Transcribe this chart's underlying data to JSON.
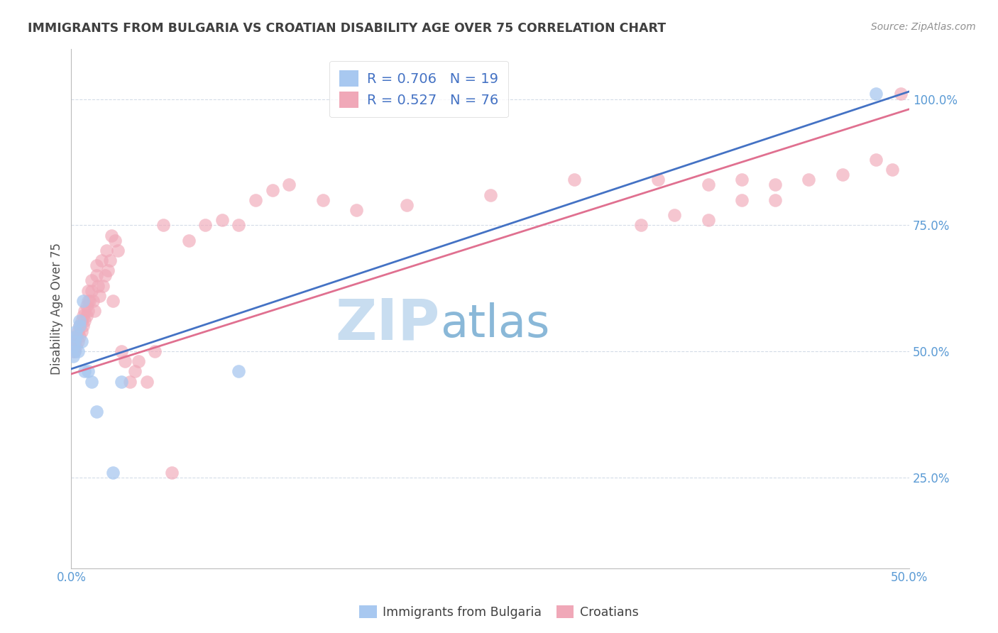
{
  "title": "IMMIGRANTS FROM BULGARIA VS CROATIAN DISABILITY AGE OVER 75 CORRELATION CHART",
  "source": "Source: ZipAtlas.com",
  "ylabel": "Disability Age Over 75",
  "xlim": [
    0.0,
    0.5
  ],
  "ylim": [
    0.07,
    1.1
  ],
  "xticks": [
    0.0,
    0.1,
    0.2,
    0.3,
    0.4,
    0.5
  ],
  "xticklabels": [
    "0.0%",
    "",
    "",
    "",
    "",
    "50.0%"
  ],
  "yticks": [
    0.25,
    0.5,
    0.75,
    1.0
  ],
  "yticklabels": [
    "25.0%",
    "50.0%",
    "75.0%",
    "100.0%"
  ],
  "legend_r_bulgaria": "0.706",
  "legend_n_bulgaria": "19",
  "legend_r_croatian": "0.527",
  "legend_n_croatian": "76",
  "color_bulgaria": "#a8c8f0",
  "color_croatian": "#f0a8b8",
  "color_line_bulgaria": "#4472c4",
  "color_line_croatian": "#e07090",
  "color_axis_tick": "#5b9bd5",
  "color_title": "#404040",
  "color_source": "#909090",
  "watermark_zip": "ZIP",
  "watermark_atlas": "atlas",
  "watermark_color_zip": "#c8ddf0",
  "watermark_color_atlas": "#8ab8d8",
  "background_color": "#ffffff",
  "grid_color": "#d4dce8",
  "trend_bg_intercept": 0.465,
  "trend_bg_slope": 1.1,
  "trend_cr_intercept": 0.455,
  "trend_cr_slope": 1.05,
  "bulgaria_x": [
    0.001,
    0.001,
    0.002,
    0.002,
    0.003,
    0.003,
    0.004,
    0.005,
    0.005,
    0.006,
    0.007,
    0.008,
    0.01,
    0.012,
    0.015,
    0.025,
    0.03,
    0.1,
    0.48
  ],
  "bulgaria_y": [
    0.51,
    0.49,
    0.52,
    0.5,
    0.53,
    0.54,
    0.5,
    0.56,
    0.55,
    0.52,
    0.6,
    0.46,
    0.46,
    0.44,
    0.38,
    0.26,
    0.44,
    0.46,
    1.01
  ],
  "croatian_x": [
    0.001,
    0.001,
    0.001,
    0.002,
    0.002,
    0.003,
    0.003,
    0.004,
    0.004,
    0.005,
    0.005,
    0.006,
    0.006,
    0.007,
    0.007,
    0.008,
    0.008,
    0.009,
    0.009,
    0.01,
    0.01,
    0.01,
    0.011,
    0.012,
    0.012,
    0.013,
    0.014,
    0.015,
    0.015,
    0.016,
    0.017,
    0.018,
    0.019,
    0.02,
    0.021,
    0.022,
    0.023,
    0.024,
    0.025,
    0.026,
    0.028,
    0.03,
    0.032,
    0.035,
    0.038,
    0.04,
    0.045,
    0.05,
    0.055,
    0.06,
    0.07,
    0.08,
    0.09,
    0.1,
    0.11,
    0.12,
    0.13,
    0.15,
    0.17,
    0.2,
    0.25,
    0.3,
    0.35,
    0.38,
    0.4,
    0.42,
    0.44,
    0.46,
    0.48,
    0.49,
    0.495,
    0.34,
    0.36,
    0.38,
    0.4,
    0.42
  ],
  "croatian_y": [
    0.5,
    0.51,
    0.52,
    0.5,
    0.52,
    0.51,
    0.53,
    0.52,
    0.54,
    0.53,
    0.55,
    0.54,
    0.56,
    0.55,
    0.57,
    0.56,
    0.58,
    0.57,
    0.59,
    0.58,
    0.6,
    0.62,
    0.6,
    0.62,
    0.64,
    0.6,
    0.58,
    0.65,
    0.67,
    0.63,
    0.61,
    0.68,
    0.63,
    0.65,
    0.7,
    0.66,
    0.68,
    0.73,
    0.6,
    0.72,
    0.7,
    0.5,
    0.48,
    0.44,
    0.46,
    0.48,
    0.44,
    0.5,
    0.75,
    0.26,
    0.72,
    0.75,
    0.76,
    0.75,
    0.8,
    0.82,
    0.83,
    0.8,
    0.78,
    0.79,
    0.81,
    0.84,
    0.84,
    0.83,
    0.84,
    0.83,
    0.84,
    0.85,
    0.88,
    0.86,
    1.01,
    0.75,
    0.77,
    0.76,
    0.8,
    0.8
  ]
}
